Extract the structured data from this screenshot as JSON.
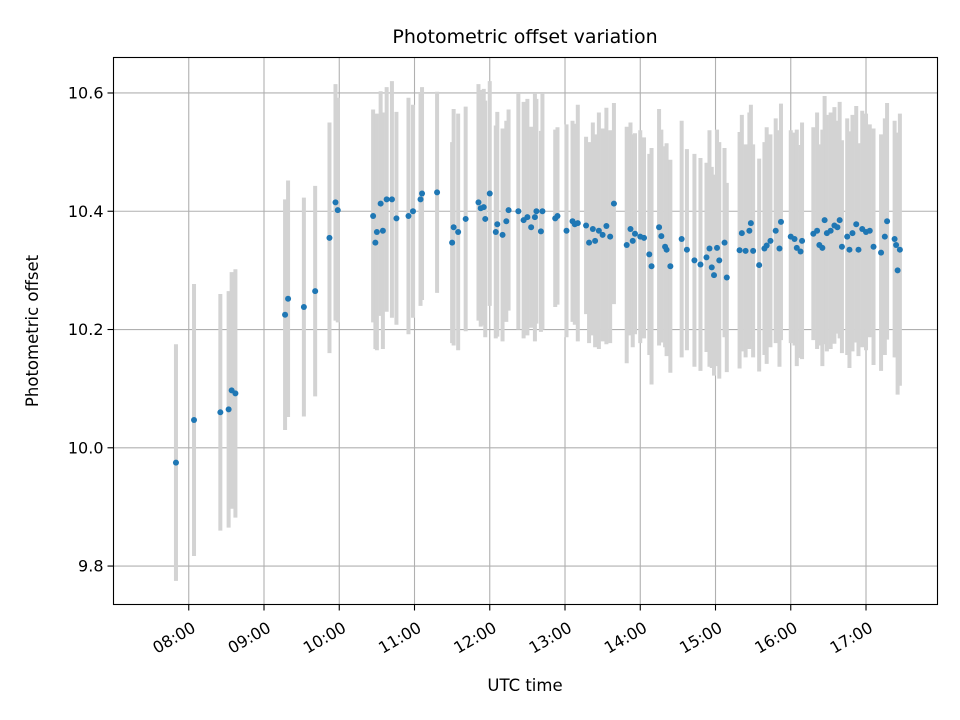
{
  "chart_data": {
    "type": "scatter",
    "title": "Photometric offset variation",
    "xlabel": "UTC time",
    "ylabel": "Photometric offset",
    "x_unit": "UTC hours",
    "xlim": [
      7.0,
      17.95
    ],
    "ylim": [
      9.735,
      10.66
    ],
    "grid": true,
    "colors": {
      "point": "#1f77b4",
      "errorbar": "#d3d3d3",
      "grid": "#b0b0b0"
    },
    "x_ticks": [
      {
        "value": 8,
        "label": "08:00"
      },
      {
        "value": 9,
        "label": "09:00"
      },
      {
        "value": 10,
        "label": "10:00"
      },
      {
        "value": 11,
        "label": "11:00"
      },
      {
        "value": 12,
        "label": "12:00"
      },
      {
        "value": 13,
        "label": "13:00"
      },
      {
        "value": 14,
        "label": "14:00"
      },
      {
        "value": 15,
        "label": "15:00"
      },
      {
        "value": 16,
        "label": "16:00"
      },
      {
        "value": 17,
        "label": "17:00"
      }
    ],
    "y_ticks": [
      {
        "value": 9.8,
        "label": "9.8"
      },
      {
        "value": 10.0,
        "label": "10.0"
      },
      {
        "value": 10.2,
        "label": "10.2"
      },
      {
        "value": 10.4,
        "label": "10.4"
      },
      {
        "value": 10.6,
        "label": "10.6"
      }
    ],
    "points": [
      [
        7.83,
        9.975,
        0.2
      ],
      [
        8.07,
        10.047,
        0.23
      ],
      [
        8.42,
        10.06,
        0.2
      ],
      [
        8.53,
        10.065,
        0.2
      ],
      [
        8.57,
        10.097,
        0.2
      ],
      [
        8.62,
        10.092,
        0.21
      ],
      [
        9.28,
        10.225,
        0.195
      ],
      [
        9.32,
        10.252,
        0.2
      ],
      [
        9.53,
        10.238,
        0.185
      ],
      [
        9.68,
        10.265,
        0.178
      ],
      [
        9.87,
        10.355,
        0.195
      ],
      [
        9.95,
        10.415,
        0.2
      ],
      [
        9.98,
        10.402,
        0.19
      ],
      [
        10.45,
        10.392,
        0.18
      ],
      [
        10.48,
        10.347,
        0.18
      ],
      [
        10.5,
        10.365,
        0.2
      ],
      [
        10.55,
        10.413,
        0.19
      ],
      [
        10.58,
        10.367,
        0.2
      ],
      [
        10.63,
        10.42,
        0.19
      ],
      [
        10.7,
        10.42,
        0.2
      ],
      [
        10.76,
        10.388,
        0.18
      ],
      [
        10.92,
        10.392,
        0.2
      ],
      [
        10.98,
        10.4,
        0.18
      ],
      [
        11.08,
        10.42,
        0.18
      ],
      [
        11.1,
        10.43,
        0.18
      ],
      [
        11.3,
        10.432,
        0.17
      ],
      [
        11.5,
        10.347,
        0.17
      ],
      [
        11.52,
        10.373,
        0.2
      ],
      [
        11.58,
        10.365,
        0.2
      ],
      [
        11.68,
        10.387,
        0.19
      ],
      [
        11.85,
        10.415,
        0.2
      ],
      [
        11.88,
        10.405,
        0.2
      ],
      [
        11.92,
        10.407,
        0.2
      ],
      [
        11.94,
        10.387,
        0.2
      ],
      [
        12.0,
        10.43,
        0.19
      ],
      [
        12.08,
        10.365,
        0.18
      ],
      [
        12.1,
        10.378,
        0.19
      ],
      [
        12.17,
        10.36,
        0.18
      ],
      [
        12.22,
        10.383,
        0.17
      ],
      [
        12.25,
        10.402,
        0.17
      ],
      [
        12.38,
        10.4,
        0.2
      ],
      [
        12.45,
        10.385,
        0.2
      ],
      [
        12.5,
        10.39,
        0.2
      ],
      [
        12.55,
        10.373,
        0.17
      ],
      [
        12.6,
        10.39,
        0.21
      ],
      [
        12.62,
        10.4,
        0.19
      ],
      [
        12.68,
        10.366,
        0.17
      ],
      [
        12.7,
        10.4,
        0.2
      ],
      [
        12.87,
        10.388,
        0.15
      ],
      [
        12.9,
        10.392,
        0.15
      ],
      [
        13.02,
        10.367,
        0.18
      ],
      [
        13.1,
        10.383,
        0.17
      ],
      [
        13.13,
        10.378,
        0.17
      ],
      [
        13.17,
        10.38,
        0.2
      ],
      [
        13.28,
        10.376,
        0.15
      ],
      [
        13.32,
        10.347,
        0.17
      ],
      [
        13.37,
        10.37,
        0.18
      ],
      [
        13.4,
        10.35,
        0.18
      ],
      [
        13.45,
        10.367,
        0.2
      ],
      [
        13.5,
        10.36,
        0.18
      ],
      [
        13.55,
        10.375,
        0.2
      ],
      [
        13.6,
        10.357,
        0.18
      ],
      [
        13.65,
        10.413,
        0.17
      ],
      [
        13.82,
        10.343,
        0.2
      ],
      [
        13.87,
        10.37,
        0.18
      ],
      [
        13.9,
        10.35,
        0.18
      ],
      [
        13.93,
        10.362,
        0.17
      ],
      [
        14.0,
        10.357,
        0.18
      ],
      [
        14.05,
        10.355,
        0.17
      ],
      [
        14.12,
        10.327,
        0.17
      ],
      [
        14.15,
        10.307,
        0.2
      ],
      [
        14.25,
        10.373,
        0.2
      ],
      [
        14.28,
        10.358,
        0.18
      ],
      [
        14.33,
        10.34,
        0.17
      ],
      [
        14.35,
        10.335,
        0.18
      ],
      [
        14.4,
        10.307,
        0.18
      ],
      [
        14.55,
        10.353,
        0.2
      ],
      [
        14.62,
        10.335,
        0.17
      ],
      [
        14.72,
        10.317,
        0.18
      ],
      [
        14.8,
        10.31,
        0.18
      ],
      [
        14.88,
        10.322,
        0.16
      ],
      [
        14.92,
        10.337,
        0.2
      ],
      [
        14.95,
        10.305,
        0.17
      ],
      [
        14.98,
        10.292,
        0.17
      ],
      [
        15.02,
        10.338,
        0.2
      ],
      [
        15.05,
        10.317,
        0.2
      ],
      [
        15.12,
        10.347,
        0.16
      ],
      [
        15.15,
        10.288,
        0.16
      ],
      [
        15.32,
        10.334,
        0.2
      ],
      [
        15.35,
        10.363,
        0.2
      ],
      [
        15.4,
        10.333,
        0.18
      ],
      [
        15.45,
        10.367,
        0.2
      ],
      [
        15.47,
        10.38,
        0.2
      ],
      [
        15.5,
        10.333,
        0.18
      ],
      [
        15.58,
        10.309,
        0.18
      ],
      [
        15.65,
        10.337,
        0.18
      ],
      [
        15.68,
        10.342,
        0.2
      ],
      [
        15.73,
        10.35,
        0.18
      ],
      [
        15.8,
        10.367,
        0.19
      ],
      [
        15.85,
        10.337,
        0.2
      ],
      [
        15.87,
        10.382,
        0.2
      ],
      [
        16.0,
        10.357,
        0.18
      ],
      [
        16.05,
        10.353,
        0.18
      ],
      [
        16.08,
        10.338,
        0.2
      ],
      [
        16.13,
        10.332,
        0.18
      ],
      [
        16.15,
        10.35,
        0.2
      ],
      [
        16.3,
        10.362,
        0.18
      ],
      [
        16.35,
        10.367,
        0.2
      ],
      [
        16.38,
        10.343,
        0.17
      ],
      [
        16.42,
        10.338,
        0.2
      ],
      [
        16.45,
        10.385,
        0.21
      ],
      [
        16.48,
        10.363,
        0.2
      ],
      [
        16.53,
        10.367,
        0.2
      ],
      [
        16.58,
        10.376,
        0.2
      ],
      [
        16.62,
        10.373,
        0.18
      ],
      [
        16.65,
        10.385,
        0.2
      ],
      [
        16.68,
        10.34,
        0.18
      ],
      [
        16.75,
        10.357,
        0.2
      ],
      [
        16.78,
        10.335,
        0.2
      ],
      [
        16.82,
        10.363,
        0.2
      ],
      [
        16.87,
        10.378,
        0.2
      ],
      [
        16.9,
        10.335,
        0.18
      ],
      [
        16.95,
        10.37,
        0.2
      ],
      [
        17.0,
        10.365,
        0.2
      ],
      [
        17.05,
        10.367,
        0.18
      ],
      [
        17.1,
        10.34,
        0.2
      ],
      [
        17.2,
        10.33,
        0.2
      ],
      [
        17.25,
        10.357,
        0.2
      ],
      [
        17.28,
        10.383,
        0.2
      ],
      [
        17.38,
        10.353,
        0.2
      ],
      [
        17.4,
        10.343,
        0.19
      ],
      [
        17.42,
        10.3,
        0.21
      ],
      [
        17.45,
        10.335,
        0.23
      ]
    ]
  }
}
